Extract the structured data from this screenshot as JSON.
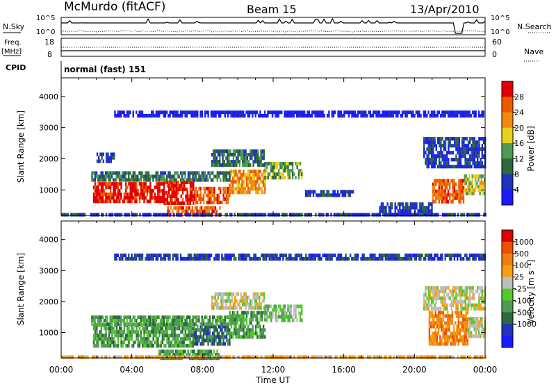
{
  "header": {
    "station": "McMurdo (fitACF)",
    "beam": "Beam 15",
    "date": "13/Apr/2010"
  },
  "params": {
    "nsky_label": "N.Sky",
    "nsearch_label": "N.Search",
    "freq_label": "Freq.",
    "freq_unit": "[MHz]",
    "nave_label": "Nave",
    "cpid_label": "CPID",
    "cpid_value": "normal (fast) 151",
    "noise_left_ticks": [
      "10^5",
      "10^0"
    ],
    "noise_right_ticks": [
      "10^5",
      "10^0"
    ],
    "freq_ticks": [
      "18",
      "8"
    ],
    "nave_ticks": [
      "60",
      "0"
    ]
  },
  "colors": {
    "power": [
      "#1a1aff",
      "#2233bb",
      "#2c6a3a",
      "#4f9a55",
      "#e6d020",
      "#f08a10",
      "#ef5a00",
      "#e10000"
    ],
    "velocity": [
      "#1a1aff",
      "#2233bb",
      "#2c6a3a",
      "#4f9a55",
      "#55c82a",
      "#bdbdbd",
      "#f4a010",
      "#f07f10",
      "#ef5000",
      "#e00000"
    ]
  },
  "chart_data": [
    {
      "type": "heatmap",
      "name": "power-panel",
      "ylabel": "Slant Range [km]",
      "xlabel": "Time UT",
      "x_ticks": [
        "00:00",
        "04:00",
        "08:00",
        "12:00",
        "16:00",
        "20:00",
        "00:00"
      ],
      "y_ticks": [
        1000,
        2000,
        3000,
        4000
      ],
      "ylim": [
        180,
        4600
      ],
      "colorbar_label": "Power [dB]",
      "colorbar_ticks": [
        "4",
        "8",
        "12",
        "16",
        "20",
        "24",
        "28"
      ],
      "regions": [
        {
          "t0": 1.8,
          "t1": 5.8,
          "r0": 650,
          "r1": 1250,
          "level": 7
        },
        {
          "t0": 5.8,
          "t1": 7.5,
          "r0": 550,
          "r1": 1300,
          "level": 7
        },
        {
          "t0": 7.5,
          "t1": 9.5,
          "r0": 600,
          "r1": 1100,
          "level": 6
        },
        {
          "t0": 9.5,
          "t1": 11.5,
          "r0": 900,
          "r1": 1650,
          "level": 5
        },
        {
          "t0": 11.5,
          "t1": 13.6,
          "r0": 1400,
          "r1": 1900,
          "level": 3
        },
        {
          "t0": 1.7,
          "t1": 9.5,
          "r0": 1300,
          "r1": 1600,
          "level": 2
        },
        {
          "t0": 6.0,
          "t1": 9.0,
          "r0": 200,
          "r1": 480,
          "level": 6
        },
        {
          "t0": 2.0,
          "t1": 3.0,
          "r0": 1900,
          "r1": 2200,
          "level": 1
        },
        {
          "t0": 8.5,
          "t1": 11.5,
          "r0": 1800,
          "r1": 2300,
          "level": 2
        },
        {
          "t0": 21.0,
          "t1": 22.8,
          "r0": 650,
          "r1": 1350,
          "level": 6
        },
        {
          "t0": 22.8,
          "t1": 24.0,
          "r0": 900,
          "r1": 1500,
          "level": 4
        },
        {
          "t0": 20.5,
          "t1": 24.0,
          "r0": 1800,
          "r1": 2700,
          "level": 1
        },
        {
          "t0": 13.8,
          "t1": 16.5,
          "r0": 800,
          "r1": 1000,
          "level": 1
        },
        {
          "t0": 18.0,
          "t1": 21.0,
          "r0": 250,
          "r1": 600,
          "level": 1
        },
        {
          "t0": 0.0,
          "t1": 24.0,
          "r0": 190,
          "r1": 260,
          "level": 1
        },
        {
          "t0": 3.0,
          "t1": 24.0,
          "r0": 3400,
          "r1": 3550,
          "level": 0
        }
      ]
    },
    {
      "type": "heatmap",
      "name": "velocity-panel",
      "ylabel": "Slant Range [km]",
      "xlabel": "Time UT",
      "x_ticks": [
        "00:00",
        "04:00",
        "08:00",
        "12:00",
        "16:00",
        "20:00",
        "00:00"
      ],
      "y_ticks": [
        1000,
        2000,
        3000,
        4000
      ],
      "ylim": [
        180,
        4600
      ],
      "colorbar_label": "Velocity [m s⁻¹]",
      "colorbar_ticks": [
        "1000",
        "500",
        "100",
        "25",
        "-25",
        "-100",
        "-500",
        "-1000"
      ],
      "regions": [
        {
          "t0": 1.8,
          "t1": 7.5,
          "r0": 600,
          "r1": 1300,
          "level": 3
        },
        {
          "t0": 7.5,
          "t1": 9.5,
          "r0": 650,
          "r1": 1250,
          "level": 2
        },
        {
          "t0": 9.5,
          "t1": 11.5,
          "r0": 900,
          "r1": 1700,
          "level": 3
        },
        {
          "t0": 11.5,
          "t1": 13.6,
          "r0": 1400,
          "r1": 1900,
          "level": 4
        },
        {
          "t0": 1.7,
          "t1": 9.5,
          "r0": 1300,
          "r1": 1550,
          "level": 3
        },
        {
          "t0": 5.5,
          "t1": 9.0,
          "r0": 200,
          "r1": 450,
          "level": 3
        },
        {
          "t0": 8.5,
          "t1": 11.5,
          "r0": 1800,
          "r1": 2300,
          "level": 5
        },
        {
          "t0": 20.8,
          "t1": 23.0,
          "r0": 650,
          "r1": 1700,
          "level": 7
        },
        {
          "t0": 23.0,
          "t1": 24.0,
          "r0": 900,
          "r1": 1500,
          "level": 5
        },
        {
          "t0": 20.5,
          "t1": 24.0,
          "r0": 1800,
          "r1": 2500,
          "level": 5
        },
        {
          "t0": 0.0,
          "t1": 24.0,
          "r0": 190,
          "r1": 260,
          "level": 6
        },
        {
          "t0": 3.0,
          "t1": 24.0,
          "r0": 3400,
          "r1": 3550,
          "level": 1
        }
      ]
    }
  ]
}
